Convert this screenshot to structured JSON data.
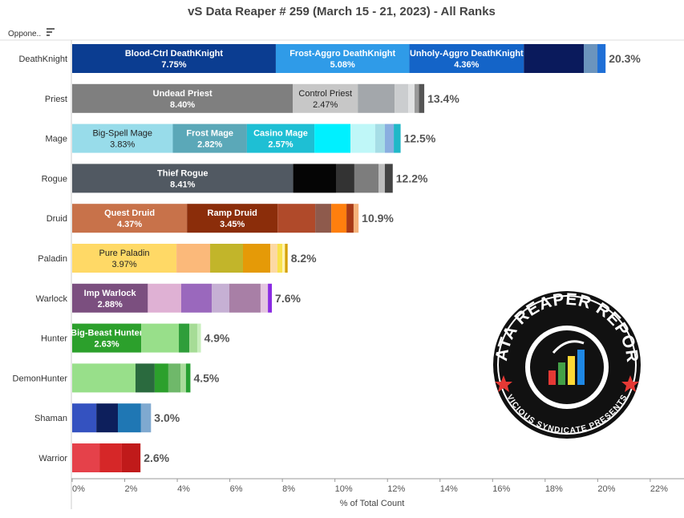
{
  "chart_data": {
    "type": "bar",
    "title": "vS Data Reaper # 259 (March 15 - 21, 2023) - All Ranks",
    "row_header": "Oppone..",
    "xlabel": "% of Total Count",
    "xlim": [
      0,
      22.4
    ],
    "xticks": [
      {
        "value": 0,
        "label": "0%"
      },
      {
        "value": 2,
        "label": "2%"
      },
      {
        "value": 4,
        "label": "4%"
      },
      {
        "value": 6,
        "label": "6%"
      },
      {
        "value": 8,
        "label": "8%"
      },
      {
        "value": 10,
        "label": "10%"
      },
      {
        "value": 12,
        "label": "12%"
      },
      {
        "value": 14,
        "label": "14%"
      },
      {
        "value": 16,
        "label": "16%"
      },
      {
        "value": 18,
        "label": "18%"
      },
      {
        "value": 20,
        "label": "20%"
      },
      {
        "value": 22,
        "label": "22%"
      }
    ],
    "logo": {
      "title": "DATA REAPER REPORT",
      "subtitle": "VICIOUS SYNDICATE PRESENTS"
    },
    "bars": [
      {
        "category": "DeathKnight",
        "total": 20.3,
        "total_label": "20.3%",
        "segments": [
          {
            "name": "Blood-Ctrl DeathKnight",
            "value": 7.75,
            "value_label": "7.75%",
            "color": "#0b3d91"
          },
          {
            "name": "Frost-Aggro DeathKnight",
            "value": 5.08,
            "value_label": "5.08%",
            "color": "#2f9be8"
          },
          {
            "name": "Unholy-Aggro DeathKnight",
            "value": 4.36,
            "value_label": "4.36%",
            "color": "#1464c8"
          },
          {
            "value": 2.28,
            "color": "#0a1a5c"
          },
          {
            "value": 0.52,
            "color": "#6b94bd"
          },
          {
            "value": 0.31,
            "color": "#1f6fd6"
          }
        ]
      },
      {
        "category": "Priest",
        "total": 13.4,
        "total_label": "13.4%",
        "segments": [
          {
            "name": "Undead Priest",
            "value": 8.4,
            "value_label": "8.40%",
            "color": "#7f7f7f"
          },
          {
            "name": "Control Priest",
            "value": 2.47,
            "value_label": "2.47%",
            "color": "#c7c7c7"
          },
          {
            "value": 1.4,
            "color": "#a3a7ab"
          },
          {
            "value": 0.52,
            "color": "#cbcdcf"
          },
          {
            "value": 0.24,
            "color": "#e0e1e2"
          },
          {
            "value": 0.17,
            "color": "#999999"
          },
          {
            "value": 0.2,
            "color": "#555555"
          }
        ]
      },
      {
        "category": "Mage",
        "total": 12.5,
        "total_label": "12.5%",
        "segments": [
          {
            "name": "Big-Spell Mage",
            "value": 3.83,
            "value_label": "3.83%",
            "color": "#98dcea"
          },
          {
            "name": "Frost Mage",
            "value": 2.82,
            "value_label": "2.82%",
            "color": "#5ba8b8"
          },
          {
            "name": "Casino Mage",
            "value": 2.57,
            "value_label": "2.57%",
            "color": "#1ebfd4"
          },
          {
            "value": 1.37,
            "color": "#00f0ff"
          },
          {
            "value": 0.94,
            "color": "#bff7f8"
          },
          {
            "value": 0.37,
            "color": "#a6dde6"
          },
          {
            "value": 0.34,
            "color": "#8aaee0"
          },
          {
            "value": 0.26,
            "color": "#20b8c8"
          }
        ]
      },
      {
        "category": "Rogue",
        "total": 12.2,
        "total_label": "12.2%",
        "segments": [
          {
            "name": "Thief Rogue",
            "value": 8.41,
            "value_label": "8.41%",
            "color": "#515962"
          },
          {
            "value": 1.63,
            "color": "#050505"
          },
          {
            "value": 0.7,
            "color": "#333333"
          },
          {
            "value": 0.92,
            "color": "#7d7d7d"
          },
          {
            "value": 0.24,
            "color": "#bdbdbd"
          },
          {
            "value": 0.3,
            "color": "#444444"
          }
        ]
      },
      {
        "category": "Druid",
        "total": 10.9,
        "total_label": "10.9%",
        "segments": [
          {
            "name": "Quest Druid",
            "value": 4.37,
            "value_label": "4.37%",
            "color": "#c8724a"
          },
          {
            "name": "Ramp Druid",
            "value": 3.45,
            "value_label": "3.45%",
            "color": "#8b2d0a"
          },
          {
            "value": 1.43,
            "color": "#b04a2a"
          },
          {
            "value": 0.61,
            "color": "#8e5a4c"
          },
          {
            "value": 0.58,
            "color": "#ff7f0e"
          },
          {
            "value": 0.27,
            "color": "#a83a16"
          },
          {
            "value": 0.19,
            "color": "#f5b27a"
          }
        ]
      },
      {
        "category": "Paladin",
        "total": 8.2,
        "total_label": "8.2%",
        "segments": [
          {
            "name": "Pure Paladin",
            "value": 3.97,
            "value_label": "3.97%",
            "color": "#ffd966"
          },
          {
            "value": 1.28,
            "color": "#fbb97a"
          },
          {
            "value": 1.25,
            "color": "#c2b52a"
          },
          {
            "value": 1.04,
            "color": "#e59a07"
          },
          {
            "value": 0.27,
            "color": "#fcd9a4"
          },
          {
            "value": 0.19,
            "color": "#f9e24c"
          },
          {
            "value": 0.1,
            "color": "#fff3b0"
          },
          {
            "value": 0.1,
            "color": "#d4a000"
          }
        ]
      },
      {
        "category": "Warlock",
        "total": 7.6,
        "total_label": "7.6%",
        "segments": [
          {
            "name": "Imp Warlock",
            "value": 2.88,
            "value_label": "2.88%",
            "color": "#7b4f7f"
          },
          {
            "value": 1.27,
            "color": "#dfb1d4"
          },
          {
            "value": 1.16,
            "color": "#9a68bd"
          },
          {
            "value": 0.67,
            "color": "#c6b0d4"
          },
          {
            "value": 1.19,
            "color": "#a87fa6"
          },
          {
            "value": 0.28,
            "color": "#e4c6e0"
          },
          {
            "value": 0.15,
            "color": "#8a2be2"
          }
        ]
      },
      {
        "category": "Hunter",
        "total": 4.9,
        "total_label": "4.9%",
        "segments": [
          {
            "name": "Big-Beast Hunter",
            "value": 2.63,
            "value_label": "2.63%",
            "color": "#2ca02c"
          },
          {
            "value": 1.43,
            "color": "#98df8a"
          },
          {
            "value": 0.4,
            "color": "#2f9e3a"
          },
          {
            "value": 0.3,
            "color": "#a6dc96"
          },
          {
            "value": 0.14,
            "color": "#c8eebc"
          }
        ]
      },
      {
        "category": "DemonHunter",
        "total": 4.5,
        "total_label": "4.5%",
        "segments": [
          {
            "value": 2.41,
            "color": "#98df8a"
          },
          {
            "value": 0.73,
            "color": "#2a6a3e"
          },
          {
            "value": 0.52,
            "color": "#2ca02c"
          },
          {
            "value": 0.46,
            "color": "#6fb86a"
          },
          {
            "value": 0.21,
            "color": "#a9dc9c"
          },
          {
            "value": 0.17,
            "color": "#26a032"
          }
        ]
      },
      {
        "category": "Shaman",
        "total": 3.0,
        "total_label": "3.0%",
        "segments": [
          {
            "value": 0.92,
            "color": "#3452c0"
          },
          {
            "value": 0.82,
            "color": "#0d1f5c"
          },
          {
            "value": 0.88,
            "color": "#1f77b4"
          },
          {
            "value": 0.38,
            "color": "#7fa9d0"
          }
        ]
      },
      {
        "category": "Warrior",
        "total": 2.6,
        "total_label": "2.6%",
        "segments": [
          {
            "value": 1.04,
            "color": "#e5414a"
          },
          {
            "value": 0.85,
            "color": "#d62728"
          },
          {
            "value": 0.71,
            "color": "#c01a1a"
          }
        ]
      }
    ]
  }
}
